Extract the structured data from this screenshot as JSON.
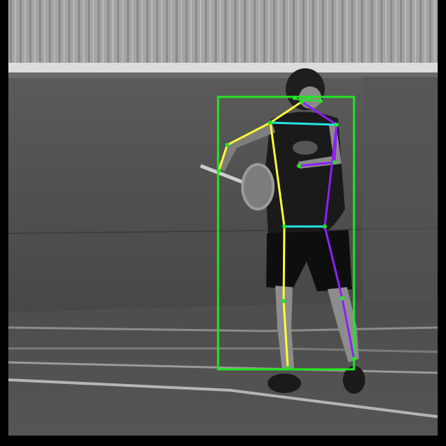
{
  "image": {
    "description_kind": "grayscale tennis photo with pose-estimation overlay",
    "colors": {
      "bbox": "#22e622",
      "left_side": "#ffff33",
      "right_side": "#8f1fff",
      "torso_link": "#22e6e6",
      "keypoint": "#22e622"
    }
  },
  "overlay": {
    "bounding_box": {
      "label_visible": false
    },
    "skeleton_parts": [
      "left-arm",
      "right-arm",
      "left-leg",
      "right-leg",
      "shoulder-link",
      "hip-link"
    ]
  }
}
